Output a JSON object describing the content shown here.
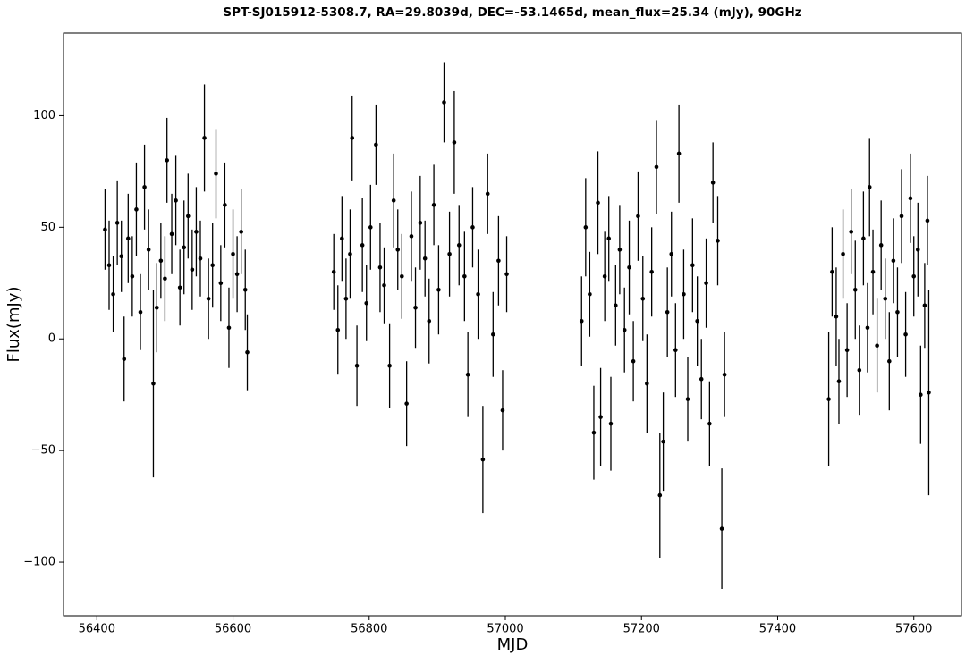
{
  "chart_data": {
    "type": "errorbar",
    "title": "SPT-SJ015912-5308.7, RA=29.8039d, DEC=-53.1465d, mean_flux=25.34 (mJy), 90GHz",
    "xlabel": "MJD",
    "ylabel": "Flux(mJy)",
    "color": "#000000",
    "grid": false,
    "xlim": [
      56351,
      57670
    ],
    "ylim": [
      -124,
      137
    ],
    "xticks": [
      56400,
      56600,
      56800,
      57000,
      57200,
      57400,
      57600
    ],
    "yticks": [
      {
        "value": -100,
        "label": "−100"
      },
      {
        "value": -50,
        "label": "−50"
      },
      0,
      50,
      100
    ],
    "x": [
      56412,
      56418,
      56424,
      56430,
      56436,
      56440,
      56446,
      56452,
      56458,
      56464,
      56470,
      56476,
      56483,
      56488,
      56494,
      56500,
      56503,
      56510,
      56516,
      56522,
      56528,
      56534,
      56540,
      56546,
      56552,
      56558,
      56564,
      56570,
      56575,
      56582,
      56588,
      56594,
      56600,
      56606,
      56612,
      56618,
      56621,
      56748,
      56754,
      56760,
      56766,
      56772,
      56775,
      56782,
      56790,
      56796,
      56802,
      56810,
      56816,
      56822,
      56830,
      56836,
      56842,
      56848,
      56855,
      56862,
      56868,
      56875,
      56882,
      56888,
      56895,
      56902,
      56910,
      56918,
      56925,
      56932,
      56940,
      56945,
      56952,
      56960,
      56967,
      56974,
      56982,
      56990,
      56996,
      57002,
      57112,
      57118,
      57124,
      57130,
      57136,
      57140,
      57146,
      57152,
      57155,
      57162,
      57168,
      57175,
      57182,
      57188,
      57195,
      57202,
      57208,
      57215,
      57222,
      57227,
      57232,
      57238,
      57244,
      57250,
      57255,
      57262,
      57268,
      57275,
      57282,
      57288,
      57295,
      57300,
      57305,
      57312,
      57318,
      57322,
      57475,
      57480,
      57486,
      57490,
      57496,
      57502,
      57508,
      57514,
      57520,
      57526,
      57532,
      57535,
      57540,
      57546,
      57552,
      57558,
      57564,
      57570,
      57576,
      57582,
      57588,
      57595,
      57600,
      57606,
      57610,
      57616,
      57620,
      57622
    ],
    "values": [
      49,
      33,
      20,
      52,
      37,
      -9,
      45,
      28,
      58,
      12,
      68,
      40,
      -20,
      14,
      35,
      27,
      80,
      47,
      62,
      23,
      41,
      55,
      31,
      48,
      36,
      90,
      18,
      33,
      74,
      25,
      60,
      5,
      38,
      29,
      48,
      22,
      -6,
      30,
      4,
      45,
      18,
      38,
      90,
      -12,
      42,
      16,
      50,
      87,
      32,
      24,
      -12,
      62,
      40,
      28,
      -29,
      46,
      14,
      52,
      36,
      8,
      60,
      22,
      106,
      38,
      88,
      42,
      28,
      -16,
      50,
      20,
      -54,
      65,
      2,
      35,
      -32,
      29,
      8,
      50,
      20,
      -42,
      61,
      -35,
      28,
      45,
      -38,
      15,
      40,
      4,
      32,
      -10,
      55,
      18,
      -20,
      30,
      77,
      -70,
      -46,
      12,
      38,
      -5,
      83,
      20,
      -27,
      33,
      8,
      -18,
      25,
      -38,
      70,
      44,
      -85,
      -16,
      -27,
      30,
      10,
      -19,
      38,
      -5,
      48,
      22,
      -14,
      45,
      5,
      68,
      30,
      -3,
      42,
      18,
      -10,
      35,
      12,
      55,
      2,
      63,
      28,
      40,
      -25,
      15,
      53,
      -24
    ],
    "errors": [
      18,
      20,
      17,
      19,
      16,
      19,
      20,
      18,
      21,
      17,
      19,
      18,
      42,
      20,
      17,
      19,
      19,
      18,
      20,
      17,
      21,
      19,
      18,
      20,
      17,
      24,
      18,
      19,
      20,
      17,
      19,
      18,
      20,
      17,
      19,
      18,
      17,
      17,
      20,
      19,
      18,
      20,
      19,
      18,
      21,
      17,
      19,
      18,
      20,
      17,
      19,
      21,
      18,
      19,
      19,
      20,
      18,
      21,
      17,
      19,
      18,
      20,
      18,
      19,
      23,
      18,
      20,
      19,
      18,
      20,
      24,
      18,
      19,
      20,
      18,
      17,
      20,
      22,
      19,
      21,
      23,
      22,
      20,
      19,
      21,
      18,
      20,
      19,
      21,
      18,
      20,
      19,
      22,
      20,
      21,
      28,
      22,
      20,
      19,
      21,
      22,
      20,
      19,
      21,
      20,
      18,
      20,
      19,
      18,
      20,
      27,
      19,
      30,
      20,
      22,
      19,
      20,
      21,
      19,
      22,
      20,
      21,
      20,
      22,
      19,
      21,
      20,
      18,
      22,
      19,
      20,
      21,
      19,
      20,
      18,
      21,
      22,
      19,
      20,
      46
    ]
  }
}
